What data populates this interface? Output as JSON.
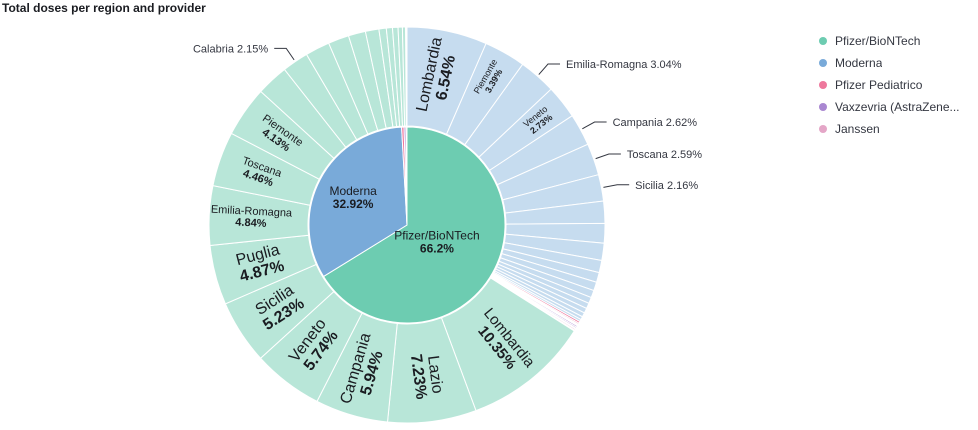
{
  "title": "Total doses per region and provider",
  "colors": {
    "pfizer": "#6dccb1",
    "pfizer_light": "#b8e6d8",
    "moderna": "#79aad9",
    "moderna_light": "#c6dcef",
    "pediatrico": "#ee789d",
    "vaxzevria": "#a987d1",
    "janssen": "#e4a6c7"
  },
  "chart_data": {
    "type": "pie",
    "title": "Total doses per region and provider",
    "inner": [
      {
        "name": "Pfizer/BioNTech",
        "value": 66.2,
        "pct": "66.2%",
        "color": "#6dccb1"
      },
      {
        "name": "Moderna",
        "value": 32.92,
        "pct": "32.92%",
        "color": "#79aad9"
      },
      {
        "name": "Pfizer Pediatrico",
        "value": 0.4,
        "color": "#ee789d"
      },
      {
        "name": "Vaxzevria (AstraZeneca)",
        "value": 0.3,
        "color": "#a987d1"
      },
      {
        "name": "Janssen",
        "value": 0.18,
        "color": "#e4a6c7"
      }
    ],
    "outer": [
      {
        "parent": "Moderna",
        "region": "Lombardia",
        "value": 6.54,
        "pct": "6.54%",
        "label": "inside-large"
      },
      {
        "parent": "Moderna",
        "region": "Piemonte",
        "value": 3.39,
        "pct": "3.39%",
        "label": "inside-small"
      },
      {
        "parent": "Moderna",
        "region": "Emilia-Romagna",
        "value": 3.04,
        "pct": "3.04%",
        "label": "outside"
      },
      {
        "parent": "Moderna",
        "region": "Veneto",
        "value": 2.73,
        "pct": "2.73%",
        "label": "inside-small"
      },
      {
        "parent": "Moderna",
        "region": "Campania",
        "value": 2.62,
        "pct": "2.62%",
        "label": "outside"
      },
      {
        "parent": "Moderna",
        "region": "Toscana",
        "value": 2.59,
        "pct": "2.59%",
        "label": "outside"
      },
      {
        "parent": "Moderna",
        "region": "Sicilia",
        "value": 2.16,
        "pct": "2.16%",
        "label": "outside"
      },
      {
        "parent": "Moderna",
        "value": 1.8
      },
      {
        "parent": "Moderna",
        "value": 1.6
      },
      {
        "parent": "Moderna",
        "value": 1.4
      },
      {
        "parent": "Moderna",
        "value": 1.0
      },
      {
        "parent": "Moderna",
        "value": 0.8
      },
      {
        "parent": "Moderna",
        "value": 0.7
      },
      {
        "parent": "Moderna",
        "value": 0.6
      },
      {
        "parent": "Moderna",
        "value": 0.5
      },
      {
        "parent": "Moderna",
        "value": 0.45
      },
      {
        "parent": "Moderna",
        "value": 0.4
      },
      {
        "parent": "Moderna",
        "value": 0.35
      },
      {
        "parent": "Moderna",
        "value": 0.25
      },
      {
        "parent": "Moderna",
        "value": 0.19
      },
      {
        "parent": "Pfizer Pediatrico",
        "value": 0.15
      },
      {
        "parent": "Pfizer Pediatrico",
        "value": 0.1
      },
      {
        "parent": "Pfizer Pediatrico",
        "value": 0.08
      },
      {
        "parent": "Pfizer Pediatrico",
        "value": 0.07
      },
      {
        "parent": "Vaxzevria (AstraZeneca)",
        "value": 0.12
      },
      {
        "parent": "Vaxzevria (AstraZeneca)",
        "value": 0.1
      },
      {
        "parent": "Vaxzevria (AstraZeneca)",
        "value": 0.08
      },
      {
        "parent": "Janssen",
        "value": 0.1
      },
      {
        "parent": "Janssen",
        "value": 0.08
      },
      {
        "parent": "Pfizer/BioNTech",
        "region": "Lombardia",
        "value": 10.35,
        "pct": "10.35%",
        "label": "inside-large"
      },
      {
        "parent": "Pfizer/BioNTech",
        "region": "Lazio",
        "value": 7.23,
        "pct": "7.23%",
        "label": "inside-large"
      },
      {
        "parent": "Pfizer/BioNTech",
        "region": "Campania",
        "value": 5.94,
        "pct": "5.94%",
        "label": "inside-large"
      },
      {
        "parent": "Pfizer/BioNTech",
        "region": "Veneto",
        "value": 5.74,
        "pct": "5.74%",
        "label": "inside-large"
      },
      {
        "parent": "Pfizer/BioNTech",
        "region": "Sicilia",
        "value": 5.23,
        "pct": "5.23%",
        "label": "inside-large"
      },
      {
        "parent": "Pfizer/BioNTech",
        "region": "Puglia",
        "value": 4.87,
        "pct": "4.87%",
        "label": "inside-large"
      },
      {
        "parent": "Pfizer/BioNTech",
        "region": "Emilia-Romagna",
        "value": 4.84,
        "pct": "4.84%",
        "label": "inside-small"
      },
      {
        "parent": "Pfizer/BioNTech",
        "region": "Toscana",
        "value": 4.46,
        "pct": "4.46%",
        "label": "inside-small"
      },
      {
        "parent": "Pfizer/BioNTech",
        "region": "Piemonte",
        "value": 4.13,
        "pct": "4.13%",
        "label": "inside-small"
      },
      {
        "parent": "Pfizer/BioNTech",
        "value": 2.6
      },
      {
        "parent": "Pfizer/BioNTech",
        "region": "Calabria",
        "value": 2.15,
        "pct": "2.15%",
        "label": "outside"
      },
      {
        "parent": "Pfizer/BioNTech",
        "value": 2.0
      },
      {
        "parent": "Pfizer/BioNTech",
        "value": 1.7
      },
      {
        "parent": "Pfizer/BioNTech",
        "value": 1.4
      },
      {
        "parent": "Pfizer/BioNTech",
        "value": 1.1
      },
      {
        "parent": "Pfizer/BioNTech",
        "value": 0.6
      },
      {
        "parent": "Pfizer/BioNTech",
        "value": 0.5
      },
      {
        "parent": "Pfizer/BioNTech",
        "value": 0.45
      },
      {
        "parent": "Pfizer/BioNTech",
        "value": 0.35
      },
      {
        "parent": "Pfizer/BioNTech",
        "value": 0.25
      }
    ],
    "legend": {
      "position": "right",
      "items": [
        {
          "label": "Pfizer/BioNTech",
          "color": "#6dccb1"
        },
        {
          "label": "Moderna",
          "color": "#79aad9"
        },
        {
          "label": "Pfizer Pediatrico",
          "color": "#ee789d"
        },
        {
          "label": "Vaxzevria (AstraZeneca)",
          "display": "Vaxzevria (AstraZene...",
          "color": "#a987d1"
        },
        {
          "label": "Janssen",
          "color": "#e4a6c7"
        }
      ]
    }
  }
}
